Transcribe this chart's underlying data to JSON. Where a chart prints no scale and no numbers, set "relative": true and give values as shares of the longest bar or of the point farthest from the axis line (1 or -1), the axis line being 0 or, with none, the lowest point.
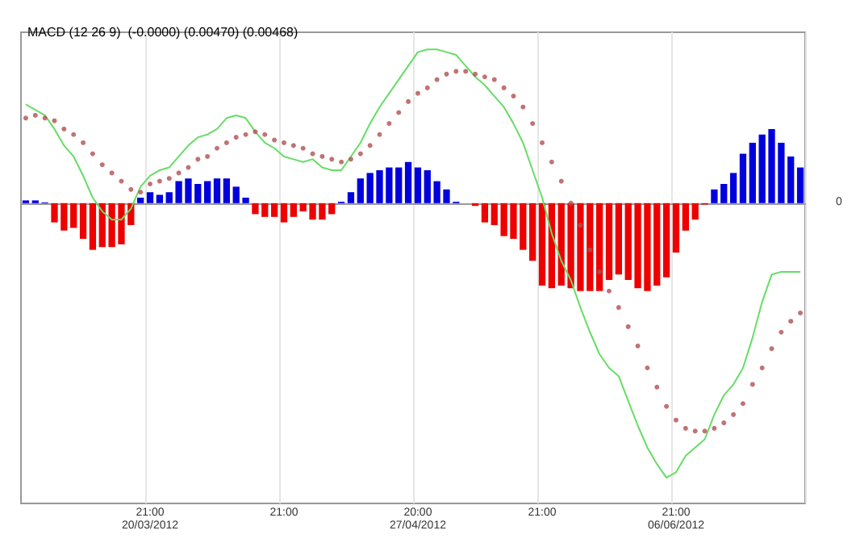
{
  "chart_data": {
    "type": "bar",
    "title": "MACD (12 26 9)  (-0.0000) (0.00470) (0.00468)",
    "relative": true,
    "grid": "x",
    "categories": [
      null,
      null,
      null,
      null,
      null,
      null,
      null,
      null,
      null,
      null,
      null,
      null,
      null,
      "21:00\n20/03/2012",
      null,
      null,
      null,
      null,
      null,
      null,
      null,
      null,
      null,
      null,
      null,
      null,
      null,
      "21:00",
      null,
      null,
      null,
      null,
      null,
      null,
      null,
      null,
      null,
      null,
      null,
      null,
      null,
      "20:00\n27/04/2012",
      null,
      null,
      null,
      null,
      null,
      null,
      null,
      null,
      null,
      null,
      null,
      null,
      "21:00",
      null,
      null,
      null,
      null,
      null,
      null,
      null,
      null,
      null,
      null,
      null,
      null,
      null,
      "21:00\n06/06/2012",
      null,
      null,
      null,
      null,
      null,
      null,
      null,
      null,
      null,
      null,
      null,
      null,
      null
    ],
    "series": [
      {
        "colors": [
          "#0000dd",
          "#0000dd",
          "#0000dd",
          "#ee0000",
          "#ee0000",
          "#ee0000",
          "#ee0000",
          "#ee0000",
          "#ee0000",
          "#ee0000",
          "#ee0000",
          "#ee0000",
          "#0000dd",
          "#0000dd",
          "#0000dd",
          "#0000dd",
          "#0000dd",
          "#0000dd",
          "#0000dd",
          "#0000dd",
          "#0000dd",
          "#0000dd",
          "#0000dd",
          "#0000dd",
          "#ee0000",
          "#ee0000",
          "#ee0000",
          "#ee0000",
          "#ee0000",
          "#ee0000",
          "#ee0000",
          "#ee0000",
          "#ee0000",
          "#0000dd",
          "#0000dd",
          "#0000dd",
          "#0000dd",
          "#0000dd",
          "#0000dd",
          "#0000dd",
          "#0000dd",
          "#0000dd",
          "#0000dd",
          "#0000dd",
          "#0000dd",
          "#0000dd",
          "#0000dd",
          "#ee0000",
          "#ee0000",
          "#ee0000",
          "#ee0000",
          "#ee0000",
          "#ee0000",
          "#ee0000",
          "#ee0000",
          "#ee0000",
          "#ee0000",
          "#ee0000",
          "#ee0000",
          "#ee0000",
          "#ee0000",
          "#ee0000",
          "#ee0000",
          "#ee0000",
          "#ee0000",
          "#ee0000",
          "#ee0000",
          "#ee0000",
          "#ee0000",
          "#ee0000",
          "#ee0000",
          "#ee0000",
          "#0000dd",
          "#0000dd",
          "#0000dd",
          "#0000dd",
          "#0000dd",
          "#0000dd",
          "#0000dd",
          "#0000dd",
          "#0000dd",
          "#0000dd"
        ],
        "values": [
          0.01,
          0.01,
          0.003,
          -0.07,
          -0.1,
          -0.09,
          -0.13,
          -0.17,
          -0.16,
          -0.16,
          -0.15,
          -0.08,
          0.02,
          0.04,
          0.03,
          0.04,
          0.08,
          0.09,
          0.07,
          0.08,
          0.09,
          0.09,
          0.06,
          0.02,
          -0.04,
          -0.05,
          -0.05,
          -0.07,
          -0.05,
          -0.03,
          -0.06,
          -0.06,
          -0.04,
          0.005,
          0.04,
          0.09,
          0.11,
          0.12,
          0.13,
          0.13,
          0.15,
          0.13,
          0.12,
          0.08,
          0.05,
          0.005,
          0,
          -0.01,
          -0.07,
          -0.08,
          -0.12,
          -0.13,
          -0.17,
          -0.21,
          -0.3,
          -0.31,
          -0.3,
          -0.31,
          -0.32,
          -0.32,
          -0.32,
          -0.28,
          -0.26,
          -0.28,
          -0.31,
          -0.32,
          -0.3,
          -0.27,
          -0.18,
          -0.1,
          -0.06,
          -0.005,
          0.05,
          0.07,
          0.11,
          0.18,
          0.22,
          0.25,
          0.27,
          0.22,
          0.17,
          0.13
        ]
      },
      {
        "type": "line",
        "color": "#66dd66",
        "values": [
          0.36,
          0.34,
          0.32,
          0.27,
          0.21,
          0.17,
          0.1,
          0.02,
          -0.03,
          -0.06,
          -0.06,
          -0.02,
          0.06,
          0.1,
          0.12,
          0.13,
          0.17,
          0.21,
          0.24,
          0.25,
          0.27,
          0.31,
          0.32,
          0.31,
          0.26,
          0.22,
          0.2,
          0.17,
          0.16,
          0.15,
          0.16,
          0.13,
          0.12,
          0.12,
          0.17,
          0.22,
          0.29,
          0.35,
          0.4,
          0.45,
          0.5,
          0.55,
          0.56,
          0.56,
          0.55,
          0.54,
          0.5,
          0.46,
          0.43,
          0.39,
          0.35,
          0.29,
          0.22,
          0.12,
          0.02,
          -0.11,
          -0.21,
          -0.28,
          -0.38,
          -0.47,
          -0.55,
          -0.6,
          -0.63,
          -0.72,
          -0.81,
          -0.89,
          -0.95,
          -1,
          -0.98,
          -0.92,
          -0.89,
          -0.86,
          -0.77,
          -0.7,
          -0.66,
          -0.6,
          -0.49,
          -0.36,
          -0.26,
          -0.25,
          -0.25,
          -0.25
        ]
      },
      {
        "type": "scatter",
        "color": "#b05050",
        "values": [
          0.31,
          0.32,
          0.31,
          0.3,
          0.27,
          0.25,
          0.22,
          0.18,
          0.14,
          0.11,
          0.08,
          0.05,
          0.04,
          0.07,
          0.08,
          0.09,
          0.11,
          0.13,
          0.16,
          0.17,
          0.2,
          0.22,
          0.24,
          0.25,
          0.26,
          0.25,
          0.23,
          0.22,
          0.21,
          0.2,
          0.18,
          0.17,
          0.16,
          0.15,
          0.16,
          0.18,
          0.21,
          0.25,
          0.29,
          0.33,
          0.37,
          0.4,
          0.42,
          0.45,
          0.47,
          0.48,
          0.48,
          0.47,
          0.46,
          0.45,
          0.42,
          0.39,
          0.35,
          0.29,
          0.22,
          0.15,
          0.08,
          0,
          -0.08,
          -0.17,
          -0.25,
          -0.32,
          -0.38,
          -0.45,
          -0.52,
          -0.6,
          -0.67,
          -0.74,
          -0.79,
          -0.82,
          -0.83,
          -0.83,
          -0.82,
          -0.8,
          -0.77,
          -0.73,
          -0.66,
          -0.6,
          -0.53,
          -0.47,
          -0.43,
          -0.4
        ]
      }
    ],
    "annotations": [
      "0"
    ]
  }
}
